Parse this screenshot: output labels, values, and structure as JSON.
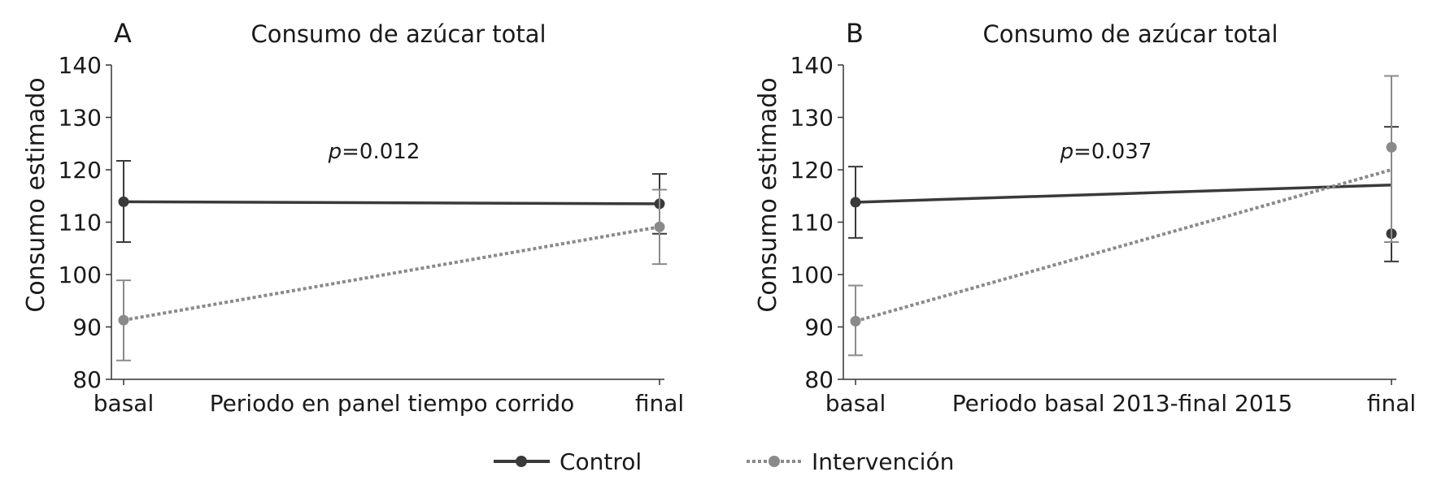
{
  "chart_data": [
    {
      "type": "line",
      "panel_letter": "A",
      "title": "Consumo de azúcar total",
      "xlabel": "Periodo en panel tiempo corrido",
      "ylabel": "Consumo estimado",
      "categories": [
        "basal",
        "final"
      ],
      "ylim": [
        80,
        140
      ],
      "yticks": [
        "80",
        "90",
        "100",
        "110",
        "120",
        "130",
        "140"
      ],
      "annotation_prefix": "p",
      "annotation_value": "=0.012",
      "grid": false,
      "series": [
        {
          "name": "Control",
          "color": "#3a3a3a",
          "style": "solid",
          "points": [
            113.9,
            113.5
          ],
          "error_low": [
            106.2,
            107.8
          ],
          "error_high": [
            121.7,
            119.2
          ],
          "trend": [
            113.9,
            113.5
          ]
        },
        {
          "name": "Intervención",
          "color": "#8a8a8a",
          "style": "dotted",
          "points": [
            91.3,
            109.1
          ],
          "error_low": [
            83.6,
            102.0
          ],
          "error_high": [
            98.9,
            116.2
          ],
          "trend": [
            91.3,
            109.1
          ]
        }
      ]
    },
    {
      "type": "line",
      "panel_letter": "B",
      "title": "Consumo de azúcar total",
      "xlabel": "Periodo basal 2013-final 2015",
      "ylabel": "Consumo estimado",
      "categories": [
        "basal",
        "final"
      ],
      "ylim": [
        80,
        140
      ],
      "yticks": [
        "80",
        "90",
        "100",
        "110",
        "120",
        "130",
        "140"
      ],
      "annotation_prefix": "p",
      "annotation_value": "=0.037",
      "grid": false,
      "series": [
        {
          "name": "Control",
          "color": "#3a3a3a",
          "style": "solid",
          "points": [
            113.8,
            107.8
          ],
          "error_low": [
            107.0,
            102.5
          ],
          "error_high": [
            120.6,
            128.2
          ],
          "trend": [
            113.8,
            117.1
          ]
        },
        {
          "name": "Intervención",
          "color": "#8a8a8a",
          "style": "dotted",
          "points": [
            91.1,
            124.3
          ],
          "error_low": [
            84.6,
            106.2
          ],
          "error_high": [
            97.9,
            137.9
          ],
          "trend": [
            91.1,
            120.0
          ]
        }
      ]
    }
  ],
  "legend": {
    "placement": "bottom-center",
    "items": [
      {
        "label": "Control",
        "color": "#3a3a3a",
        "style": "solid"
      },
      {
        "label": "Intervención",
        "color": "#8a8a8a",
        "style": "dotted"
      }
    ]
  }
}
